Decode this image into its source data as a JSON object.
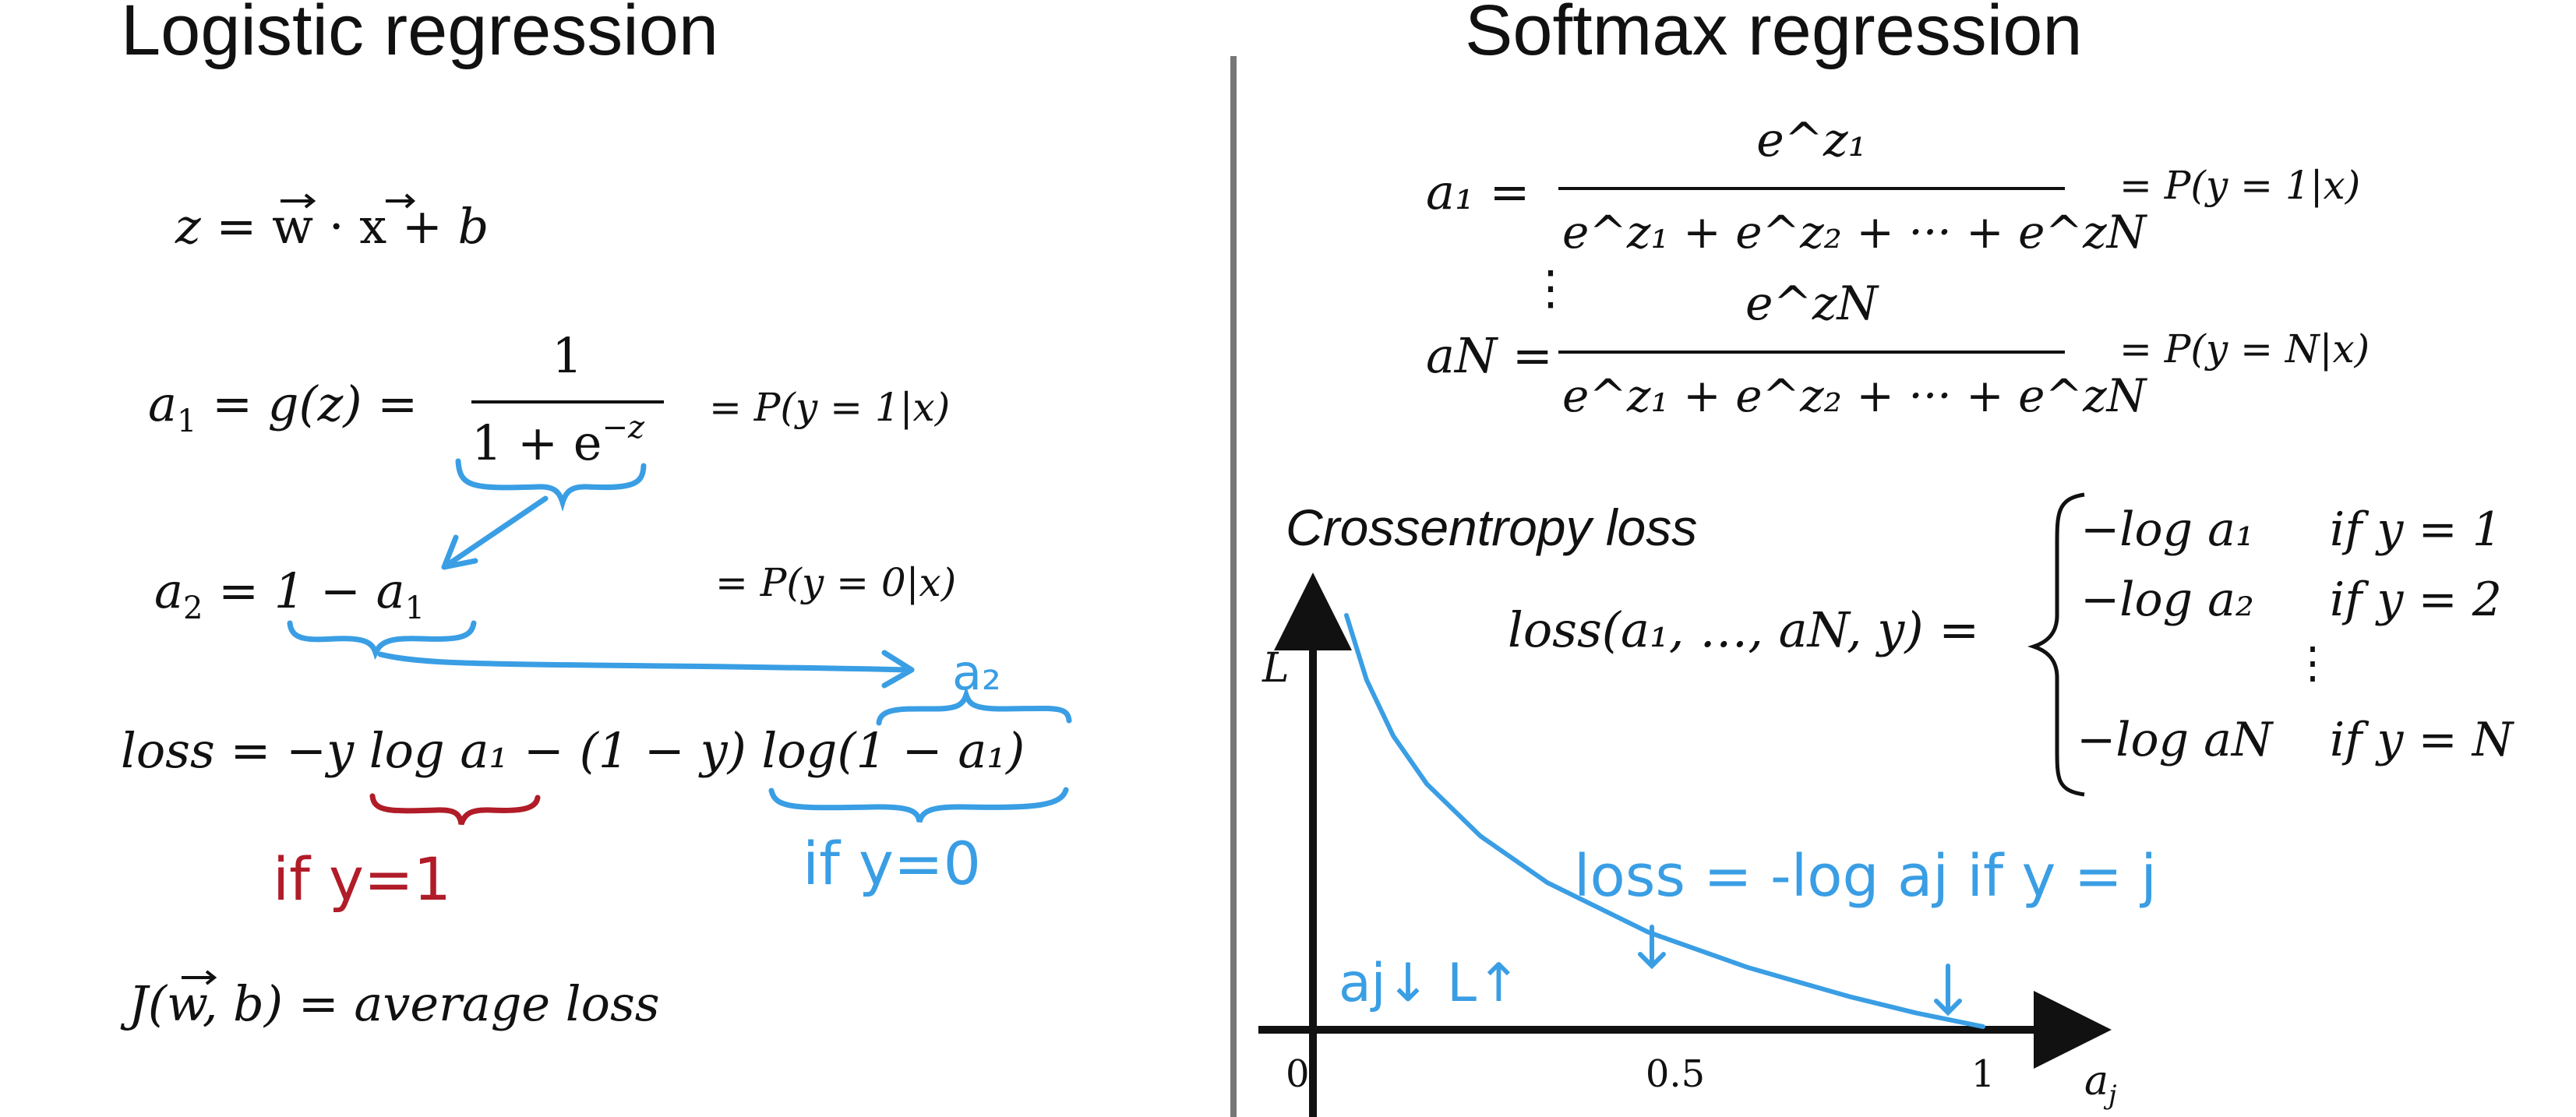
{
  "colors": {
    "ink": "#111111",
    "annotation_blue": "#3a9ee4",
    "annotation_red": "#b01c28",
    "divider": "#777777"
  },
  "left": {
    "title": "Logistic regression",
    "z_eq": {
      "lhs": "z = ",
      "w": "w",
      "dot": " · ",
      "x": "x",
      "rest": " + b"
    },
    "a1_eq": {
      "lhs": "a",
      "sub": "1",
      "mid": " = g(z) = ",
      "num": "1",
      "den_a": "1 + e",
      "den_sup": "−z"
    },
    "p1": "= P(y = 1|x)",
    "a2_eq": {
      "lhs": "a",
      "lhs_sub": "2",
      "mid": " = 1 − a",
      "rhs_sub": "1"
    },
    "p0": "= P(y = 0|x)",
    "loss_eq": "loss = −y log a₁ − (1 − y) log(1 − a₁)",
    "note_a2": "a₂",
    "note_if_y1": "if y=1",
    "note_if_y0": "if y=0",
    "cost_eq": "J(w, b) = average loss"
  },
  "right": {
    "title": "Softmax regression",
    "a1_label": "a₁ =",
    "a1_num": "e^z₁",
    "denominator": "e^z₁ + e^z₂ + ··· + e^zN",
    "p1": "= P(y = 1|x)",
    "vdots": "⋮",
    "aN_label": "aN =",
    "aN_num": "e^zN",
    "pN": "= P(y = N|x)",
    "ce_title": "Crossentropy loss",
    "loss_lhs": "loss(a₁, …, aN, y) =",
    "cases": [
      {
        "expr": "−log a₁",
        "cond": "if y = 1"
      },
      {
        "expr": "−log a₂",
        "cond": "if y = 2"
      },
      {
        "expr": "−log aN",
        "cond": "if y = N"
      }
    ],
    "cases_vdots": "⋮",
    "note_loss": "loss = -log aj if y = j",
    "note_aj_L": "aj↓ L↑"
  },
  "chart_data": {
    "type": "line",
    "ylabel": "L",
    "xlabel": "a_j",
    "x_ticks": [
      "0",
      "0.5",
      "1"
    ],
    "xlim": [
      0,
      1
    ],
    "series": [
      {
        "x": [
          0.05,
          0.08,
          0.12,
          0.17,
          0.25,
          0.35,
          0.5,
          0.65,
          0.8,
          0.9,
          1.0
        ],
        "y": [
          3.0,
          2.53,
          2.12,
          1.77,
          1.39,
          1.05,
          0.69,
          0.43,
          0.22,
          0.1,
          0.0
        ]
      }
    ]
  }
}
